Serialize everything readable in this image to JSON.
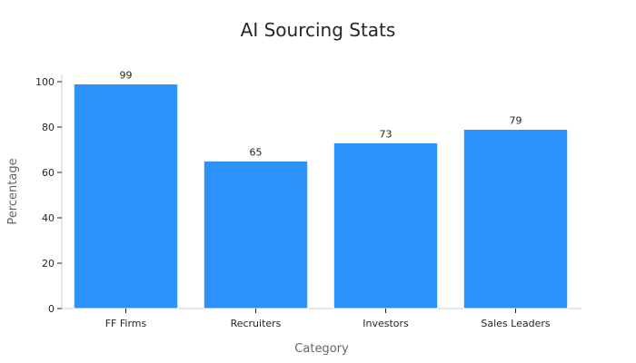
{
  "chart_data": {
    "type": "bar",
    "title": "AI Sourcing Stats",
    "xlabel": "Category",
    "ylabel": "Percentage",
    "categories": [
      "FF Firms",
      "Recruiters",
      "Investors",
      "Sales Leaders"
    ],
    "values": [
      99,
      65,
      73,
      79
    ],
    "ylim": [
      0,
      100
    ],
    "yticks": [
      0,
      20,
      40,
      60,
      80,
      100
    ],
    "grid": false,
    "legend": "none",
    "bar_color": "#2d92fa",
    "data_labels": true
  }
}
